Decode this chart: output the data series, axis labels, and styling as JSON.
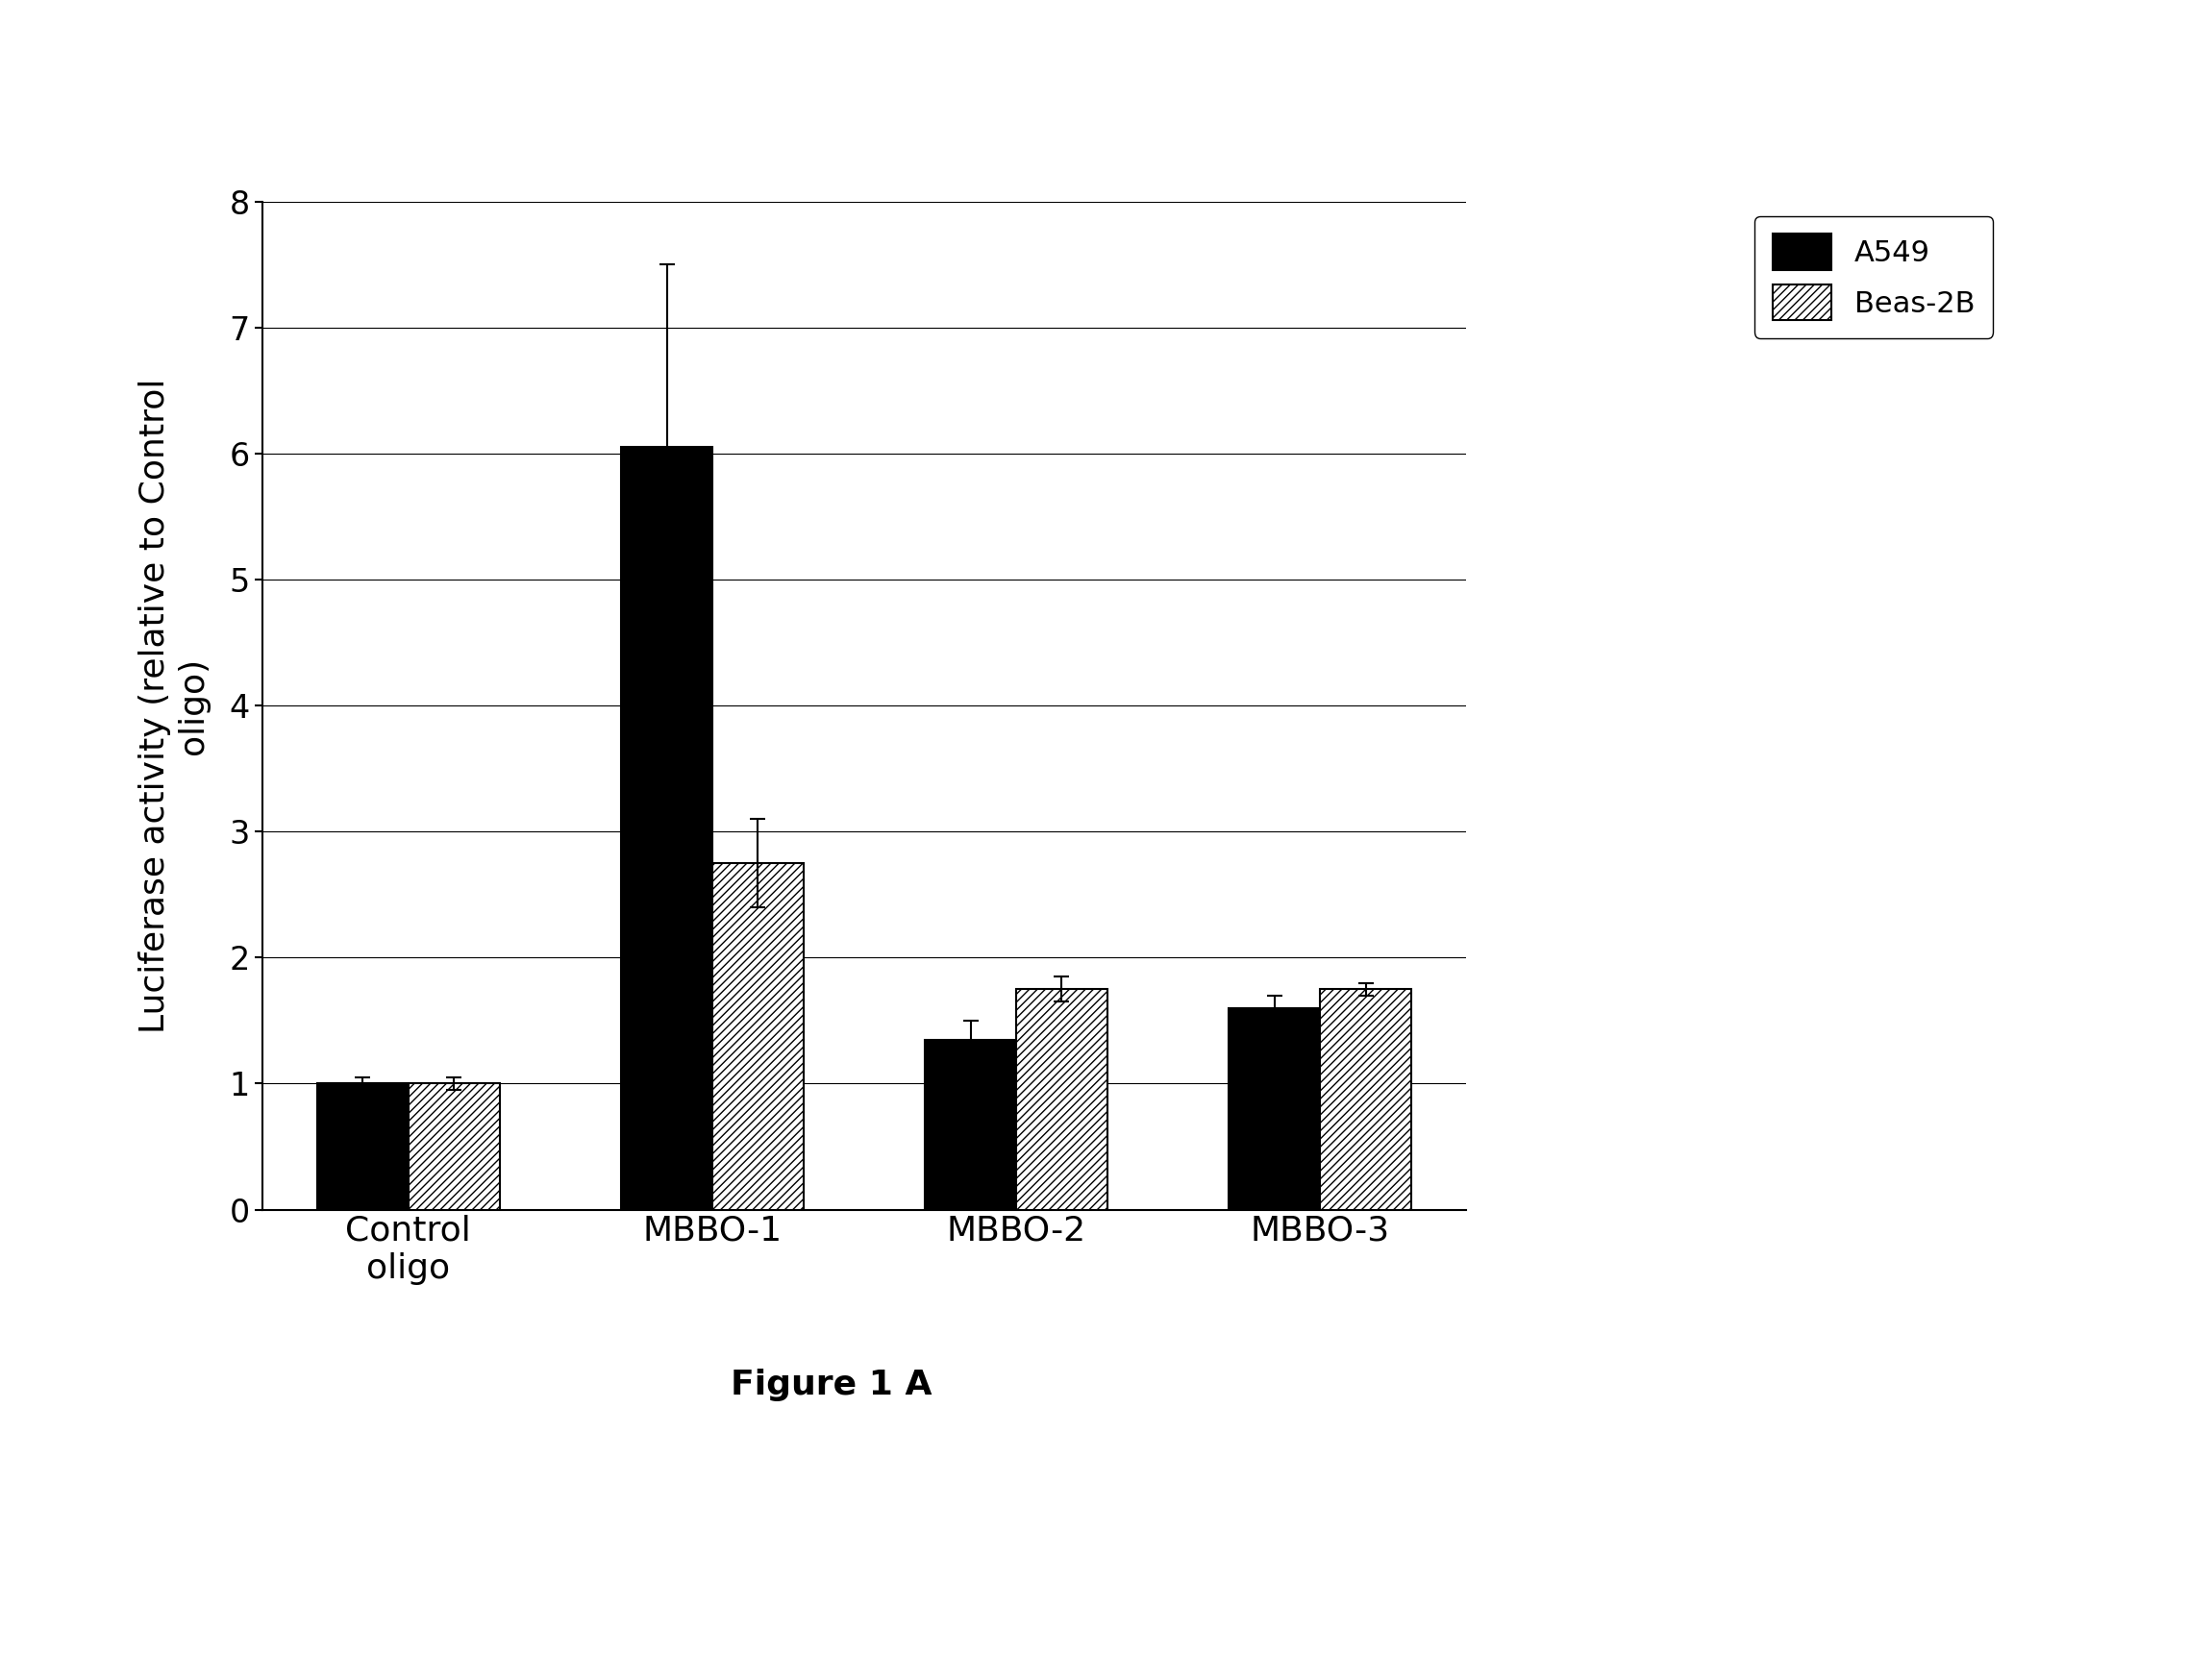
{
  "categories": [
    "Control\noligo",
    "MBBO-1",
    "MBBO-2",
    "MBBO-3"
  ],
  "a549_values": [
    1.0,
    6.05,
    1.35,
    1.6
  ],
  "beas2b_values": [
    1.0,
    2.75,
    1.75,
    1.75
  ],
  "a549_errors": [
    0.05,
    1.45,
    0.15,
    0.1
  ],
  "beas2b_errors": [
    0.05,
    0.35,
    0.1,
    0.05
  ],
  "ylabel": "Luciferase activity (relative to Control\noligo)",
  "ylim": [
    0,
    8
  ],
  "yticks": [
    0,
    1,
    2,
    3,
    4,
    5,
    6,
    7,
    8
  ],
  "bar_width": 0.3,
  "a549_color": "#000000",
  "beas2b_color": "#ffffff",
  "hatch_pattern": "////",
  "legend_labels": [
    "A549",
    "Beas-2B"
  ],
  "caption": "Figure 1 A",
  "background_color": "#ffffff",
  "gridcolor": "#000000",
  "label_fontsize": 26,
  "tick_fontsize": 24,
  "legend_fontsize": 22,
  "caption_fontsize": 26
}
